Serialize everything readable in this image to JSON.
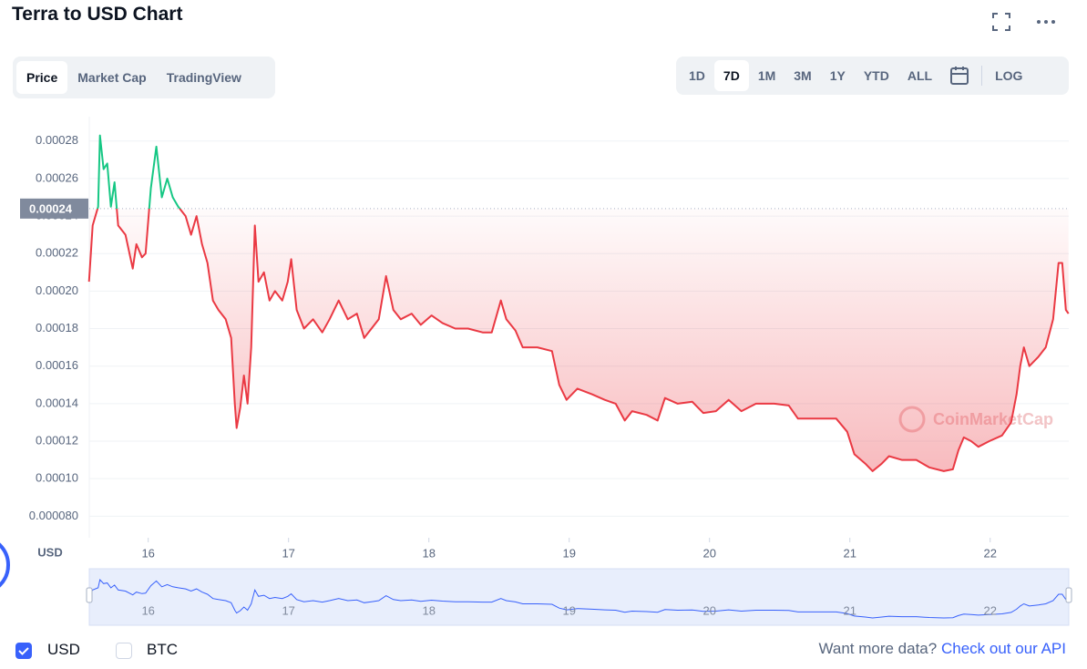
{
  "header": {
    "title": "Terra to USD Chart"
  },
  "tabs": {
    "items": [
      "Price",
      "Market Cap",
      "TradingView"
    ],
    "active": 0
  },
  "ranges": {
    "items": [
      "1D",
      "7D",
      "1M",
      "3M",
      "1Y",
      "YTD",
      "ALL"
    ],
    "active": 1,
    "log": "LOG"
  },
  "chart_data": {
    "type": "line",
    "ylabel": "USD",
    "watermark": "CoinMarketCap",
    "x": [
      15.578,
      15.604,
      15.643,
      15.656,
      15.682,
      15.708,
      15.734,
      15.76,
      15.786,
      15.838,
      15.89,
      15.916,
      15.955,
      15.981,
      16.019,
      16.058,
      16.097,
      16.136,
      16.175,
      16.214,
      16.266,
      16.305,
      16.344,
      16.383,
      16.422,
      16.461,
      16.5,
      16.552,
      16.591,
      16.617,
      16.63,
      16.656,
      16.682,
      16.708,
      16.734,
      16.76,
      16.786,
      16.825,
      16.864,
      16.903,
      16.955,
      16.994,
      17.019,
      17.058,
      17.11,
      17.175,
      17.24,
      17.292,
      17.357,
      17.422,
      17.487,
      17.539,
      17.591,
      17.643,
      17.695,
      17.747,
      17.799,
      17.877,
      17.942,
      18.019,
      18.097,
      18.188,
      18.279,
      18.383,
      18.448,
      18.513,
      18.552,
      18.617,
      18.669,
      18.773,
      18.877,
      18.929,
      18.981,
      19.058,
      19.162,
      19.253,
      19.331,
      19.396,
      19.448,
      19.552,
      19.63,
      19.682,
      19.773,
      19.877,
      19.955,
      20.045,
      20.136,
      20.227,
      20.331,
      20.461,
      20.565,
      20.63,
      20.786,
      20.903,
      20.981,
      21.032,
      21.11,
      21.162,
      21.227,
      21.279,
      21.37,
      21.474,
      21.565,
      21.669,
      21.734,
      21.773,
      21.812,
      21.864,
      21.916,
      21.994,
      22.084,
      22.149,
      22.188,
      22.214,
      22.24,
      22.279,
      22.344,
      22.396,
      22.448,
      22.487,
      22.513,
      22.539,
      22.558
    ],
    "series": [
      {
        "name": "USD",
        "checked": true,
        "values": [
          0.000205,
          0.000235,
          0.000245,
          0.000283,
          0.000265,
          0.000268,
          0.000245,
          0.000258,
          0.000235,
          0.00023,
          0.000212,
          0.000225,
          0.000218,
          0.00022,
          0.000255,
          0.000277,
          0.00025,
          0.00026,
          0.00025,
          0.000245,
          0.00024,
          0.00023,
          0.00024,
          0.000225,
          0.000215,
          0.000195,
          0.00019,
          0.000185,
          0.000175,
          0.00014,
          0.000127,
          0.000138,
          0.000155,
          0.00014,
          0.00017,
          0.000235,
          0.000205,
          0.00021,
          0.000195,
          0.0002,
          0.000195,
          0.000205,
          0.000217,
          0.00019,
          0.00018,
          0.000185,
          0.000178,
          0.000185,
          0.000195,
          0.000185,
          0.000188,
          0.000175,
          0.00018,
          0.000185,
          0.000208,
          0.00019,
          0.000185,
          0.000188,
          0.000182,
          0.000187,
          0.000183,
          0.00018,
          0.00018,
          0.000178,
          0.000178,
          0.000195,
          0.000185,
          0.000179,
          0.00017,
          0.00017,
          0.000168,
          0.00015,
          0.000142,
          0.000148,
          0.000145,
          0.000142,
          0.00014,
          0.000131,
          0.000136,
          0.000134,
          0.000131,
          0.000143,
          0.00014,
          0.000141,
          0.000135,
          0.000136,
          0.000142,
          0.000136,
          0.00014,
          0.00014,
          0.000139,
          0.000132,
          0.000132,
          0.000132,
          0.000125,
          0.000113,
          0.000108,
          0.000104,
          0.000108,
          0.000112,
          0.00011,
          0.00011,
          0.000106,
          0.000104,
          0.000105,
          0.000115,
          0.000122,
          0.00012,
          0.000117,
          0.00012,
          0.000123,
          0.00013,
          0.000145,
          0.00016,
          0.00017,
          0.00016,
          0.000165,
          0.00017,
          0.000185,
          0.000215,
          0.000215,
          0.00019,
          0.000188
        ]
      }
    ],
    "colors": {
      "up": "#16c784",
      "down": "#ea3943",
      "navigator": "#3861fb"
    },
    "reference_line": {
      "value": 0.000244,
      "label": "0.00024"
    },
    "xlim": [
      15.58,
      22.56
    ],
    "xticks": [
      16,
      17,
      18,
      19,
      20,
      21,
      22
    ],
    "ylim": [
      6.85e-05,
      0.000293
    ],
    "yticks": [
      0.00028,
      0.00026,
      0.00024,
      0.00022,
      {
        "value": 0.0002,
        "label": "0.00020"
      },
      0.00018,
      0.00016,
      0.00014,
      0.00012,
      {
        "value": 0.0001,
        "label": "0.00010"
      },
      {
        "value": 8e-05,
        "label": "0.000080"
      }
    ],
    "grid": true
  },
  "footer": {
    "options": [
      {
        "label": "BTC",
        "checked": false
      }
    ],
    "prompt": "Want more data?",
    "link": "Check out our API"
  }
}
